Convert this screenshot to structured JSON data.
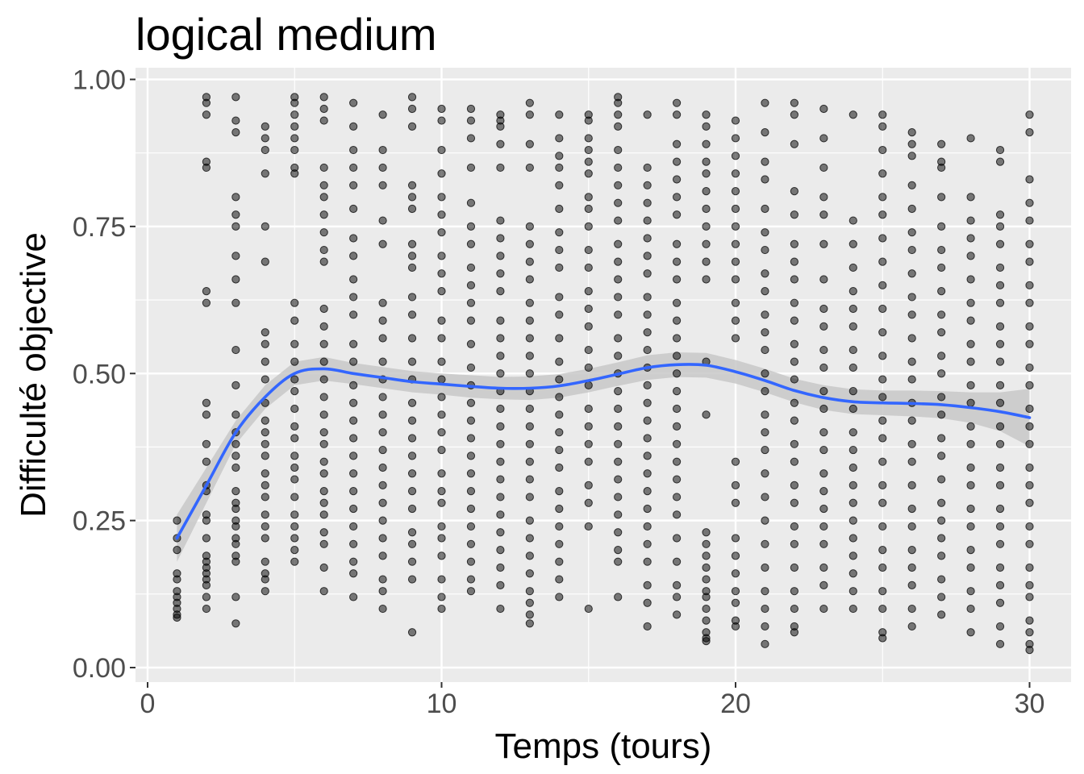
{
  "chart_data": {
    "type": "scatter",
    "title": "logical medium",
    "xlabel": "Temps (tours)",
    "ylabel": "Difficulté objective",
    "xlim": [
      -0.5,
      31.5
    ],
    "ylim": [
      0,
      1.0
    ],
    "x_ticks": [
      0,
      10,
      20,
      30
    ],
    "y_ticks": [
      0.0,
      0.25,
      0.5,
      0.75,
      1.0
    ],
    "x_tick_labels": [
      "0",
      "10",
      "20",
      "30"
    ],
    "y_tick_labels": [
      "0.00",
      "0.25",
      "0.50",
      "0.75",
      "1.00"
    ],
    "grid": true,
    "colors": {
      "panel": "#ebebeb",
      "grid": "#ffffff",
      "points": "#000000",
      "smooth_line": "#3366ff",
      "ribbon": "#c8c8c8"
    },
    "points": [
      {
        "x": 1,
        "y": [
          0.25,
          0.22,
          0.2,
          0.16,
          0.15,
          0.13,
          0.12,
          0.11,
          0.1,
          0.09,
          0.085
        ]
      },
      {
        "x": 2,
        "y": [
          0.97,
          0.96,
          0.94,
          0.86,
          0.85,
          0.64,
          0.62,
          0.45,
          0.43,
          0.38,
          0.35,
          0.31,
          0.3,
          0.26,
          0.25,
          0.22,
          0.19,
          0.18,
          0.17,
          0.16,
          0.15,
          0.14,
          0.12,
          0.1
        ]
      },
      {
        "x": 3,
        "y": [
          0.97,
          0.93,
          0.91,
          0.8,
          0.77,
          0.75,
          0.7,
          0.66,
          0.62,
          0.54,
          0.48,
          0.43,
          0.4,
          0.38,
          0.36,
          0.34,
          0.3,
          0.28,
          0.27,
          0.25,
          0.24,
          0.22,
          0.21,
          0.19,
          0.18,
          0.12,
          0.075
        ]
      },
      {
        "x": 4,
        "y": [
          0.92,
          0.9,
          0.88,
          0.84,
          0.75,
          0.69,
          0.57,
          0.55,
          0.52,
          0.49,
          0.45,
          0.42,
          0.4,
          0.38,
          0.36,
          0.33,
          0.31,
          0.29,
          0.26,
          0.24,
          0.22,
          0.18,
          0.16,
          0.15,
          0.13
        ]
      },
      {
        "x": 5,
        "y": [
          0.97,
          0.96,
          0.94,
          0.92,
          0.9,
          0.88,
          0.85,
          0.84,
          0.62,
          0.59,
          0.55,
          0.52,
          0.49,
          0.47,
          0.44,
          0.41,
          0.39,
          0.36,
          0.34,
          0.32,
          0.29,
          0.26,
          0.24,
          0.22,
          0.2,
          0.18
        ]
      },
      {
        "x": 6,
        "y": [
          0.97,
          0.95,
          0.93,
          0.85,
          0.82,
          0.8,
          0.77,
          0.74,
          0.71,
          0.69,
          0.61,
          0.58,
          0.55,
          0.52,
          0.49,
          0.46,
          0.43,
          0.4,
          0.38,
          0.35,
          0.33,
          0.3,
          0.28,
          0.26,
          0.23,
          0.21,
          0.17,
          0.13
        ]
      },
      {
        "x": 7,
        "y": [
          0.96,
          0.92,
          0.88,
          0.85,
          0.82,
          0.78,
          0.73,
          0.7,
          0.66,
          0.63,
          0.6,
          0.55,
          0.52,
          0.48,
          0.45,
          0.42,
          0.39,
          0.36,
          0.33,
          0.3,
          0.27,
          0.24,
          0.21,
          0.18,
          0.16,
          0.12
        ]
      },
      {
        "x": 8,
        "y": [
          0.94,
          0.88,
          0.85,
          0.82,
          0.76,
          0.72,
          0.62,
          0.59,
          0.56,
          0.52,
          0.49,
          0.46,
          0.43,
          0.4,
          0.37,
          0.34,
          0.31,
          0.28,
          0.25,
          0.22,
          0.19,
          0.15,
          0.13,
          0.1
        ]
      },
      {
        "x": 9,
        "y": [
          0.97,
          0.95,
          0.92,
          0.82,
          0.8,
          0.78,
          0.72,
          0.7,
          0.68,
          0.63,
          0.6,
          0.56,
          0.52,
          0.49,
          0.45,
          0.42,
          0.39,
          0.36,
          0.33,
          0.3,
          0.27,
          0.23,
          0.21,
          0.18,
          0.15,
          0.06
        ]
      },
      {
        "x": 10,
        "y": [
          0.95,
          0.93,
          0.88,
          0.84,
          0.8,
          0.77,
          0.74,
          0.7,
          0.67,
          0.64,
          0.59,
          0.56,
          0.52,
          0.49,
          0.46,
          0.43,
          0.4,
          0.37,
          0.33,
          0.3,
          0.28,
          0.24,
          0.22,
          0.19,
          0.15,
          0.12,
          0.1
        ]
      },
      {
        "x": 11,
        "y": [
          0.95,
          0.93,
          0.9,
          0.85,
          0.79,
          0.75,
          0.72,
          0.68,
          0.65,
          0.62,
          0.59,
          0.55,
          0.51,
          0.48,
          0.45,
          0.42,
          0.39,
          0.36,
          0.33,
          0.3,
          0.27,
          0.24,
          0.21,
          0.18,
          0.15,
          0.13
        ]
      },
      {
        "x": 12,
        "y": [
          0.94,
          0.93,
          0.92,
          0.89,
          0.85,
          0.76,
          0.73,
          0.7,
          0.67,
          0.64,
          0.59,
          0.56,
          0.53,
          0.5,
          0.47,
          0.44,
          0.41,
          0.38,
          0.35,
          0.32,
          0.29,
          0.26,
          0.23,
          0.2,
          0.17,
          0.14,
          0.1
        ]
      },
      {
        "x": 13,
        "y": [
          0.96,
          0.94,
          0.89,
          0.85,
          0.75,
          0.72,
          0.69,
          0.66,
          0.62,
          0.59,
          0.56,
          0.53,
          0.5,
          0.47,
          0.44,
          0.41,
          0.38,
          0.35,
          0.32,
          0.29,
          0.25,
          0.22,
          0.19,
          0.16,
          0.13,
          0.11,
          0.09,
          0.075
        ]
      },
      {
        "x": 14,
        "y": [
          0.94,
          0.9,
          0.87,
          0.85,
          0.82,
          0.78,
          0.74,
          0.71,
          0.68,
          0.63,
          0.6,
          0.56,
          0.52,
          0.49,
          0.46,
          0.43,
          0.4,
          0.37,
          0.34,
          0.3,
          0.27,
          0.24,
          0.21,
          0.18,
          0.15,
          0.12
        ]
      },
      {
        "x": 15,
        "y": [
          0.94,
          0.93,
          0.9,
          0.88,
          0.86,
          0.84,
          0.8,
          0.78,
          0.75,
          0.71,
          0.68,
          0.64,
          0.61,
          0.58,
          0.54,
          0.51,
          0.48,
          0.44,
          0.41,
          0.38,
          0.35,
          0.31,
          0.28,
          0.24,
          0.1
        ]
      },
      {
        "x": 16,
        "y": [
          0.97,
          0.96,
          0.94,
          0.92,
          0.88,
          0.85,
          0.82,
          0.79,
          0.76,
          0.72,
          0.69,
          0.66,
          0.63,
          0.6,
          0.56,
          0.53,
          0.5,
          0.47,
          0.44,
          0.41,
          0.38,
          0.35,
          0.32,
          0.29,
          0.26,
          0.23,
          0.2,
          0.18,
          0.12
        ]
      },
      {
        "x": 17,
        "y": [
          0.94,
          0.85,
          0.82,
          0.79,
          0.76,
          0.73,
          0.7,
          0.67,
          0.63,
          0.6,
          0.57,
          0.54,
          0.51,
          0.48,
          0.45,
          0.42,
          0.39,
          0.36,
          0.33,
          0.3,
          0.27,
          0.24,
          0.21,
          0.18,
          0.14,
          0.11,
          0.07
        ]
      },
      {
        "x": 18,
        "y": [
          0.96,
          0.94,
          0.89,
          0.86,
          0.83,
          0.8,
          0.77,
          0.72,
          0.69,
          0.66,
          0.62,
          0.59,
          0.56,
          0.53,
          0.5,
          0.47,
          0.44,
          0.41,
          0.38,
          0.35,
          0.32,
          0.29,
          0.26,
          0.22,
          0.18,
          0.14,
          0.12,
          0.09
        ]
      },
      {
        "x": 19,
        "y": [
          0.94,
          0.92,
          0.89,
          0.86,
          0.84,
          0.81,
          0.78,
          0.75,
          0.72,
          0.69,
          0.66,
          0.52,
          0.43,
          0.23,
          0.21,
          0.19,
          0.17,
          0.15,
          0.13,
          0.12,
          0.1,
          0.08,
          0.06,
          0.05,
          0.045
        ]
      },
      {
        "x": 20,
        "y": [
          0.93,
          0.9,
          0.87,
          0.84,
          0.81,
          0.78,
          0.75,
          0.72,
          0.69,
          0.66,
          0.62,
          0.59,
          0.56,
          0.35,
          0.31,
          0.28,
          0.22,
          0.19,
          0.16,
          0.13,
          0.11,
          0.08,
          0.07
        ]
      },
      {
        "x": 21,
        "y": [
          0.96,
          0.91,
          0.86,
          0.83,
          0.78,
          0.74,
          0.71,
          0.67,
          0.64,
          0.6,
          0.57,
          0.54,
          0.5,
          0.47,
          0.43,
          0.4,
          0.37,
          0.33,
          0.29,
          0.25,
          0.21,
          0.17,
          0.13,
          0.1,
          0.07,
          0.04
        ]
      },
      {
        "x": 22,
        "y": [
          0.96,
          0.94,
          0.89,
          0.81,
          0.77,
          0.72,
          0.69,
          0.66,
          0.62,
          0.59,
          0.55,
          0.52,
          0.49,
          0.45,
          0.42,
          0.38,
          0.35,
          0.31,
          0.28,
          0.24,
          0.21,
          0.17,
          0.13,
          0.1,
          0.07,
          0.06
        ]
      },
      {
        "x": 23,
        "y": [
          0.95,
          0.9,
          0.85,
          0.8,
          0.77,
          0.72,
          0.66,
          0.61,
          0.58,
          0.54,
          0.51,
          0.47,
          0.44,
          0.4,
          0.37,
          0.33,
          0.3,
          0.27,
          0.24,
          0.21,
          0.17,
          0.14,
          0.1
        ]
      },
      {
        "x": 24,
        "y": [
          0.94,
          0.76,
          0.72,
          0.68,
          0.64,
          0.61,
          0.58,
          0.54,
          0.51,
          0.47,
          0.44,
          0.4,
          0.37,
          0.34,
          0.31,
          0.28,
          0.25,
          0.22,
          0.19,
          0.16,
          0.13,
          0.1
        ]
      },
      {
        "x": 25,
        "y": [
          0.94,
          0.92,
          0.88,
          0.84,
          0.8,
          0.77,
          0.73,
          0.69,
          0.65,
          0.61,
          0.57,
          0.53,
          0.49,
          0.46,
          0.42,
          0.39,
          0.35,
          0.31,
          0.28,
          0.24,
          0.2,
          0.17,
          0.13,
          0.1,
          0.06,
          0.05
        ]
      },
      {
        "x": 26,
        "y": [
          0.91,
          0.89,
          0.87,
          0.82,
          0.78,
          0.74,
          0.71,
          0.67,
          0.63,
          0.6,
          0.56,
          0.52,
          0.49,
          0.45,
          0.42,
          0.38,
          0.35,
          0.31,
          0.27,
          0.24,
          0.2,
          0.17,
          0.14,
          0.1,
          0.07
        ]
      },
      {
        "x": 27,
        "y": [
          0.89,
          0.86,
          0.85,
          0.8,
          0.75,
          0.71,
          0.68,
          0.64,
          0.6,
          0.57,
          0.53,
          0.5,
          0.46,
          0.43,
          0.39,
          0.36,
          0.32,
          0.28,
          0.25,
          0.22,
          0.19,
          0.15,
          0.12,
          0.09
        ]
      },
      {
        "x": 28,
        "y": [
          0.9,
          0.8,
          0.76,
          0.73,
          0.7,
          0.66,
          0.62,
          0.59,
          0.55,
          0.52,
          0.48,
          0.45,
          0.41,
          0.38,
          0.34,
          0.31,
          0.27,
          0.24,
          0.2,
          0.17,
          0.13,
          0.1,
          0.06
        ]
      },
      {
        "x": 29,
        "y": [
          0.88,
          0.86,
          0.77,
          0.75,
          0.72,
          0.68,
          0.65,
          0.62,
          0.58,
          0.55,
          0.52,
          0.48,
          0.45,
          0.41,
          0.38,
          0.34,
          0.31,
          0.27,
          0.24,
          0.21,
          0.17,
          0.14,
          0.11,
          0.07,
          0.04
        ]
      },
      {
        "x": 30,
        "y": [
          0.94,
          0.91,
          0.83,
          0.79,
          0.76,
          0.72,
          0.69,
          0.65,
          0.62,
          0.58,
          0.55,
          0.51,
          0.48,
          0.44,
          0.41,
          0.38,
          0.34,
          0.31,
          0.28,
          0.24,
          0.21,
          0.17,
          0.14,
          0.12,
          0.08,
          0.06,
          0.04,
          0.03
        ]
      }
    ],
    "smooth": {
      "x": [
        1,
        2,
        3,
        4,
        5,
        6,
        7,
        8,
        9,
        10,
        11,
        12,
        13,
        14,
        15,
        16,
        17,
        18,
        19,
        20,
        21,
        22,
        23,
        24,
        25,
        26,
        27,
        28,
        29,
        30
      ],
      "y": [
        0.22,
        0.31,
        0.4,
        0.46,
        0.5,
        0.508,
        0.5,
        0.493,
        0.486,
        0.482,
        0.478,
        0.475,
        0.475,
        0.479,
        0.488,
        0.499,
        0.51,
        0.515,
        0.514,
        0.503,
        0.488,
        0.471,
        0.459,
        0.452,
        0.45,
        0.449,
        0.447,
        0.442,
        0.435,
        0.425
      ],
      "lower": [
        0.18,
        0.28,
        0.38,
        0.44,
        0.48,
        0.488,
        0.482,
        0.475,
        0.468,
        0.464,
        0.459,
        0.456,
        0.455,
        0.459,
        0.468,
        0.479,
        0.489,
        0.494,
        0.493,
        0.483,
        0.468,
        0.451,
        0.438,
        0.431,
        0.429,
        0.427,
        0.424,
        0.416,
        0.402,
        0.376
      ],
      "upper": [
        0.26,
        0.34,
        0.42,
        0.48,
        0.52,
        0.528,
        0.518,
        0.511,
        0.504,
        0.5,
        0.497,
        0.494,
        0.495,
        0.499,
        0.508,
        0.519,
        0.531,
        0.536,
        0.535,
        0.523,
        0.508,
        0.491,
        0.48,
        0.473,
        0.471,
        0.471,
        0.47,
        0.468,
        0.468,
        0.474
      ]
    }
  }
}
